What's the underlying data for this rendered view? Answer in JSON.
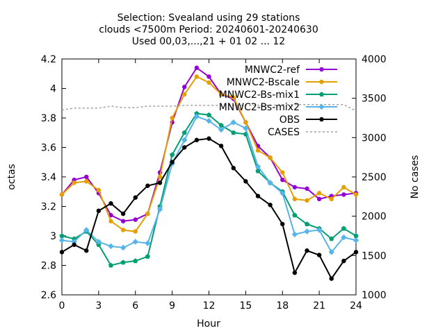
{
  "chart_data": {
    "type": "line",
    "title_lines": [
      "Selection: Svealand using    29 stations",
      "clouds <7500m   Period: 20240601-20240630",
      "Used 00,03,...,21 + 01 02 ... 12"
    ],
    "xlabel": "Hour",
    "ylabel": "octas",
    "y2label": "No cases",
    "xlim": [
      0,
      24
    ],
    "ylim": [
      2.6,
      4.2
    ],
    "y2lim": [
      1000,
      4000
    ],
    "xticks": [
      "0",
      "3",
      "6",
      "9",
      "12",
      "15",
      "18",
      "21",
      "24"
    ],
    "yticks": [
      "2.6",
      "2.8",
      "3",
      "3.2",
      "3.4",
      "3.6",
      "3.8",
      "4",
      "4.2"
    ],
    "y2ticks": [
      "1000",
      "1500",
      "2000",
      "2500",
      "3000",
      "3500",
      "4000"
    ],
    "grid": false,
    "legend_position": "top-right",
    "x": [
      0,
      1,
      2,
      3,
      4,
      5,
      6,
      7,
      8,
      9,
      10,
      11,
      12,
      13,
      14,
      15,
      16,
      17,
      18,
      19,
      20,
      21,
      22,
      23,
      24
    ],
    "series": [
      {
        "name": "MNWC2-ref",
        "color": "#9400d3",
        "marker": "circle",
        "values": [
          3.28,
          3.38,
          3.4,
          3.29,
          3.14,
          3.1,
          3.11,
          3.15,
          3.43,
          3.77,
          4.01,
          4.14,
          4.08,
          3.96,
          3.93,
          3.77,
          3.61,
          3.53,
          3.38,
          3.33,
          3.32,
          3.25,
          3.27,
          3.28,
          3.29
        ]
      },
      {
        "name": "MNWC2-Bscale",
        "color": "#e69f00",
        "marker": "circle",
        "values": [
          3.28,
          3.36,
          3.37,
          3.31,
          3.1,
          3.04,
          3.03,
          3.15,
          3.4,
          3.8,
          3.96,
          4.08,
          4.04,
          3.96,
          3.94,
          3.77,
          3.58,
          3.53,
          3.43,
          3.25,
          3.24,
          3.29,
          3.25,
          3.33,
          3.28
        ]
      },
      {
        "name": "MNWC2-Bs-mix1",
        "color": "#009e73",
        "marker": "pentagon",
        "values": [
          3.0,
          2.98,
          3.03,
          2.94,
          2.8,
          2.82,
          2.83,
          2.86,
          3.2,
          3.55,
          3.7,
          3.83,
          3.82,
          3.75,
          3.7,
          3.69,
          3.44,
          3.36,
          3.3,
          3.14,
          3.08,
          3.05,
          2.98,
          3.05,
          3.0
        ]
      },
      {
        "name": "MNWC2-Bs-mix2",
        "color": "#56b4e9",
        "marker": "diamond",
        "values": [
          2.97,
          2.96,
          3.04,
          2.96,
          2.93,
          2.92,
          2.96,
          2.95,
          3.18,
          3.49,
          3.65,
          3.81,
          3.78,
          3.72,
          3.77,
          3.73,
          3.47,
          3.36,
          3.29,
          3.01,
          3.03,
          3.04,
          2.89,
          2.99,
          2.97
        ]
      },
      {
        "name": "OBS",
        "color": "#000000",
        "marker": "circle",
        "values": [
          2.89,
          2.94,
          2.9,
          3.17,
          3.22,
          3.15,
          3.26,
          3.34,
          3.36,
          3.5,
          3.6,
          3.65,
          3.66,
          3.61,
          3.46,
          3.37,
          3.27,
          3.21,
          3.08,
          2.75,
          2.9,
          2.87,
          2.71,
          2.83,
          2.89
        ]
      },
      {
        "name": "CASES",
        "color": "#a0a0a0",
        "axis": "right",
        "dashed": true,
        "x": [
          0,
          1,
          2,
          3,
          4,
          5,
          6,
          7,
          8,
          9,
          10,
          11,
          12,
          13,
          14,
          15,
          16,
          17,
          18,
          19,
          20,
          21,
          22,
          23,
          24
        ],
        "values": [
          3350,
          3375,
          3375,
          3375,
          3400,
          3380,
          3380,
          3400,
          3400,
          3400,
          3410,
          3410,
          3410,
          3410,
          3410,
          3410,
          3410,
          3410,
          3420,
          3420,
          3420,
          3420,
          3420,
          3420,
          3340
        ]
      }
    ]
  }
}
